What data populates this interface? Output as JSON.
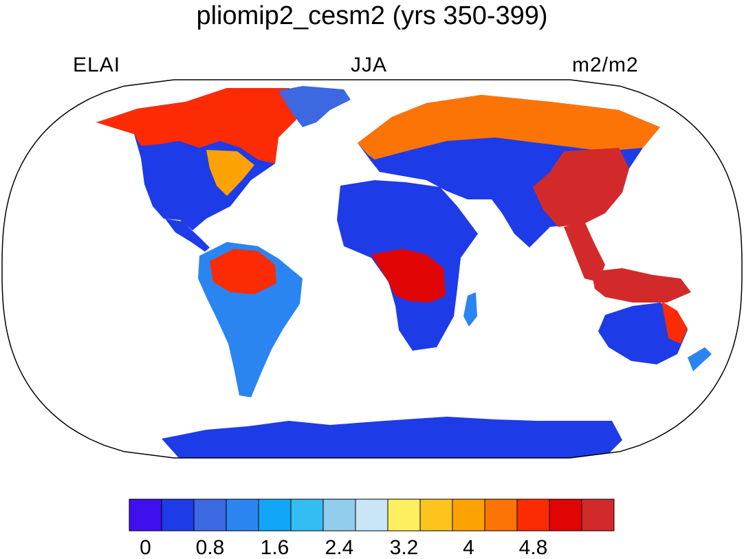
{
  "header": {
    "title": "pliomip2_cesm2 (yrs 350-399)",
    "left_label": "ELAI",
    "center_label": "JJA",
    "right_label": "m2/m2"
  },
  "map": {
    "projection": "robinson",
    "colors": {
      "ocean": "#ffffff",
      "outline": "#000000"
    }
  },
  "colorbar": {
    "colors": [
      "#3e10ee",
      "#1e3be8",
      "#3c68e2",
      "#2a85f0",
      "#11a6f6",
      "#33bdf3",
      "#93cdee",
      "#c9e6f7",
      "#fdef60",
      "#fdc41e",
      "#fda203",
      "#fd7406",
      "#fd2b04",
      "#e10404",
      "#d22a2a"
    ],
    "tick_labels": [
      "0",
      "0.8",
      "1.6",
      "2.4",
      "3.2",
      "4",
      "4.8"
    ],
    "tick_values": [
      0,
      0.8,
      1.6,
      2.4,
      3.2,
      4,
      4.8
    ]
  }
}
